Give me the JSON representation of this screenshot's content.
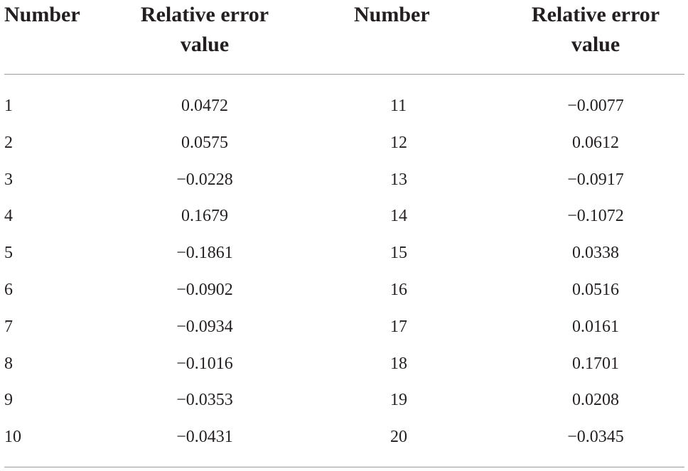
{
  "table": {
    "headers": [
      "Number",
      "Relative error value",
      "Number",
      "Relative error value"
    ],
    "header_lines": {
      "col1": [
        "Number"
      ],
      "col2": [
        "Relative error",
        "value"
      ],
      "col3": [
        "Number"
      ],
      "col4": [
        "Relative error",
        "value"
      ]
    },
    "rows": [
      [
        "1",
        "0.0472",
        "11",
        "−0.0077"
      ],
      [
        "2",
        "0.0575",
        "12",
        "0.0612"
      ],
      [
        "3",
        "−0.0228",
        "13",
        "−0.0917"
      ],
      [
        "4",
        "0.1679",
        "14",
        "−0.1072"
      ],
      [
        "5",
        "−0.1861",
        "15",
        "0.0338"
      ],
      [
        "6",
        "−0.0902",
        "16",
        "0.0516"
      ],
      [
        "7",
        "−0.0934",
        "17",
        "0.0161"
      ],
      [
        "8",
        "−0.1016",
        "18",
        "0.1701"
      ],
      [
        "9",
        "−0.0353",
        "19",
        "0.0208"
      ],
      [
        "10",
        "−0.0431",
        "20",
        "−0.0345"
      ]
    ]
  }
}
